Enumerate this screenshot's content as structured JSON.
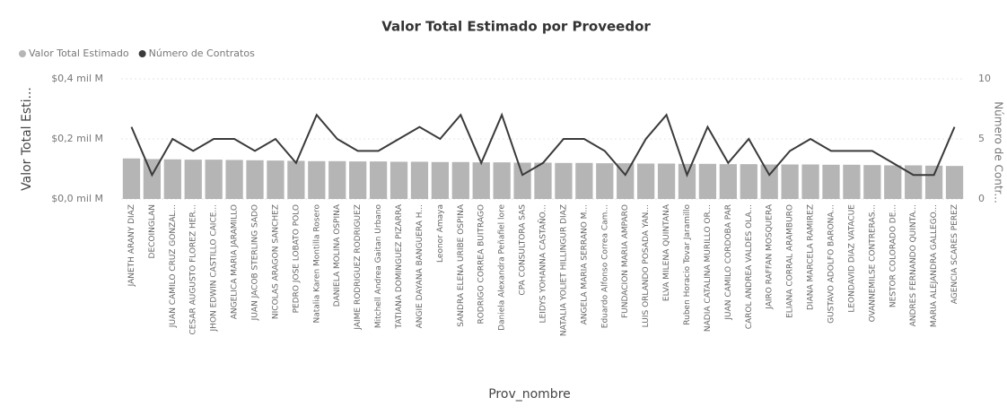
{
  "chart_data": {
    "type": "bar-line",
    "title": "Valor Total Estimado por Proveedor",
    "x_label": "Prov_nombre",
    "y_label": "Valor Total Esti...",
    "y2_label": "Número de Contr...",
    "categories": [
      "JANETH ARANY DIAZ",
      "DECOINGLAN",
      "JUAN CAMILO CRUZ GONZAL...",
      "CESAR AUGUSTO FLOREZ HER...",
      "JHON EDWIN CASTILLO CAICE...",
      "ANGELICA MARIA JARAMILLO",
      "JUAN JACOB STERLING SADO",
      "NICOLAS ARAGON SANCHEZ",
      "PEDRO JOSE LOBATO POLO",
      "Natalia Karen Montilla Rosero",
      "DANIELA MOLINA OSPINA",
      "JAIME RODRIGUEZ RODRIGUEZ",
      "Mitchell Andrea Gaitan Urbano",
      "TATIANA DOMINGUEZ PIZARRA",
      "ANGIE DAYANA BANGUERA H...",
      "Leonor Amaya",
      "SANDRA ELENA URIBE OSPINA",
      "RODRIGO CORREA BUITRAGO",
      "Daniela Alexandra Peñafiel lore",
      "CPA CONSULTORA SAS",
      "LEIDYS YOHANNA CASTAÑO...",
      "NATALIA YOLIET HILLINGUR DIAZ",
      "ANGELA MARIA SERRANO M...",
      "Eduardo Alfonso Correa Cam...",
      "FUNDACION MARIA AMPARO",
      "LUIS ORLANDO POSADA YAN...",
      "ELVA MILENA QUINTANA",
      "Ruben Horacio Tovar Jaramillo",
      "NADIA CATALINA MURILLO OR...",
      "JUAN CAMILO CORDOBA PAR",
      "CAROL ANDREA VALDES OLA...",
      "JAIRO RAFFAN MOSQUERA",
      "ELIANA CORRAL ARAMBURO",
      "DIANA MARCELA RAMIREZ",
      "GUSTAVO ADOLFO BARONA...",
      "LEONDAVID DIAZ VATACUE",
      "OVANNEMILSE CONTRERAS...",
      "NESTOR COLORADO DE...",
      "ANDRES FERNANDO QUINTA...",
      "MARIA ALEJANDRA GALLEGO...",
      "AGENCIA SCARES PEREZ"
    ],
    "series": [
      {
        "name": "Valor Total Estimado",
        "color": "#b5b5b5",
        "values": [
          0.135,
          0.133,
          0.132,
          0.131,
          0.131,
          0.13,
          0.129,
          0.128,
          0.127,
          0.126,
          0.126,
          0.125,
          0.125,
          0.124,
          0.124,
          0.123,
          0.123,
          0.122,
          0.122,
          0.121,
          0.121,
          0.12,
          0.12,
          0.119,
          0.119,
          0.118,
          0.118,
          0.117,
          0.117,
          0.116,
          0.116,
          0.115,
          0.115,
          0.115,
          0.114,
          0.114,
          0.113,
          0.112,
          0.112,
          0.111,
          0.11
        ]
      },
      {
        "name": "Número de Contratos",
        "color": "#3a3a3a",
        "axis": "y2",
        "values": [
          6,
          2,
          5,
          4,
          5,
          5,
          4,
          5,
          3,
          7,
          5,
          4,
          4,
          5,
          6,
          5,
          7,
          3,
          7,
          2,
          3,
          5,
          5,
          4,
          2,
          5,
          7,
          2,
          6,
          3,
          5,
          2,
          4,
          5,
          4,
          4,
          4,
          3,
          2,
          2,
          6
        ]
      }
    ],
    "ylim": [
      0,
      0.4
    ],
    "yticks": [
      {
        "value": 0,
        "label": "$0,0 mil M"
      },
      {
        "value": 0.2,
        "label": "$0,2 mil M"
      },
      {
        "value": 0.4,
        "label": "$0,4 mil M"
      }
    ],
    "y2lim": [
      0,
      10
    ],
    "y2ticks": [
      0,
      5,
      10
    ],
    "grid": true
  }
}
